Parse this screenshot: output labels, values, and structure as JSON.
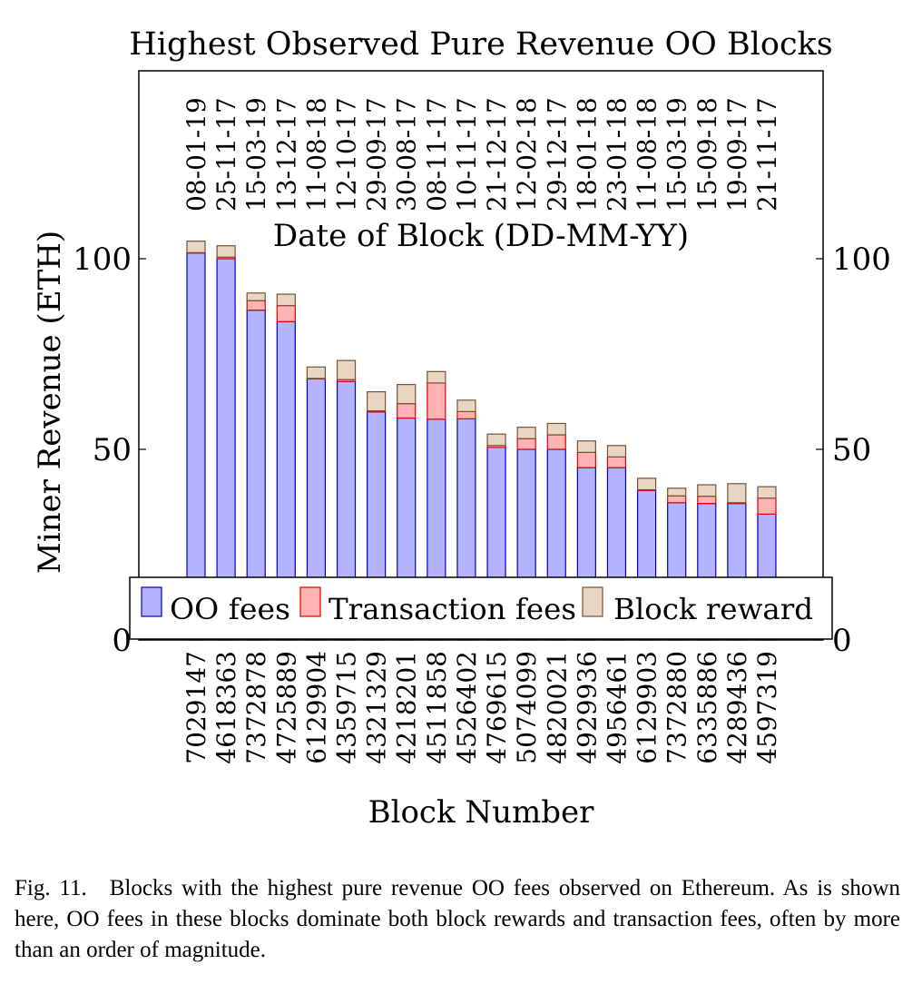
{
  "chart_data": {
    "type": "bar",
    "stacked": true,
    "title": "Highest Observed Pure Revenue OO Blocks",
    "xlabel": "Block Number",
    "x2label": "Date of Block (DD-MM-YY)",
    "ylabel": "Miner Revenue (ETH)",
    "ylim": [
      0,
      100
    ],
    "yticks": [
      0,
      50,
      100
    ],
    "categories": [
      "7029147",
      "4618363",
      "7372878",
      "4725889",
      "6129904",
      "4359715",
      "4321329",
      "4218201",
      "4511858",
      "4526402",
      "4769615",
      "5074099",
      "4820021",
      "4929936",
      "4956461",
      "6129903",
      "7372880",
      "6335886",
      "4289436",
      "4597319"
    ],
    "dates": [
      "08-01-19",
      "25-11-17",
      "15-03-19",
      "13-12-17",
      "11-08-18",
      "12-10-17",
      "29-09-17",
      "30-08-17",
      "08-11-17",
      "10-11-17",
      "21-12-17",
      "12-02-18",
      "29-12-17",
      "18-01-18",
      "23-01-18",
      "11-08-18",
      "15-03-19",
      "15-09-18",
      "19-09-17",
      "21-11-17"
    ],
    "series": [
      {
        "name": "OO fees",
        "color": "#b3b3ff",
        "stroke": "#0000cc",
        "values": [
          101.5,
          100.0,
          86.5,
          83.5,
          68.5,
          67.8,
          59.8,
          58.2,
          57.9,
          58.0,
          50.5,
          50.0,
          50.0,
          45.2,
          45.2,
          39.2,
          36.0,
          35.8,
          35.8,
          33.0
        ]
      },
      {
        "name": "Transaction fees",
        "color": "#ffb3b3",
        "stroke": "#e00000",
        "values": [
          0.1,
          0.4,
          2.5,
          4.2,
          0.1,
          0.5,
          0.3,
          3.8,
          9.5,
          1.9,
          0.5,
          2.8,
          3.8,
          4.0,
          2.8,
          0.2,
          1.8,
          1.9,
          0.2,
          4.2
        ]
      },
      {
        "name": "Block reward",
        "color": "#e8d6c3",
        "stroke": "#7a5230",
        "values": [
          3.0,
          3.0,
          2.0,
          3.0,
          3.0,
          5.0,
          5.0,
          5.0,
          3.0,
          3.0,
          3.0,
          3.0,
          3.0,
          3.0,
          3.0,
          3.0,
          2.0,
          3.0,
          5.0,
          3.0
        ]
      }
    ],
    "legend": "bottom"
  },
  "caption": "Fig. 11. Blocks with the highest pure revenue OO fees observed on Ethereum. As is shown here, OO fees in these blocks dominate both block rewards and transaction fees, often by more than an order of magnitude."
}
